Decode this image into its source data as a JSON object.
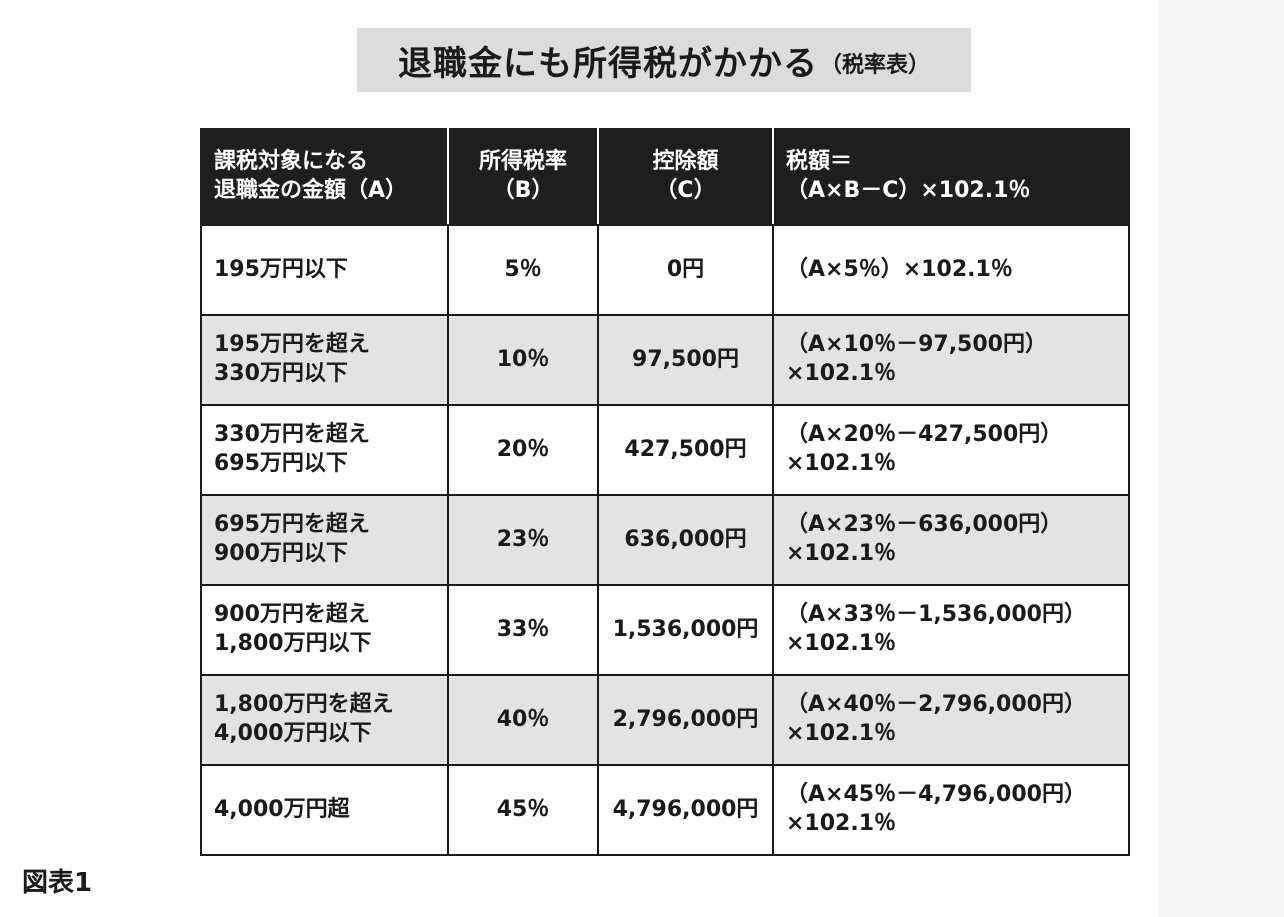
{
  "title": {
    "main": "退職金にも所得税がかかる",
    "sub": "（税率表）"
  },
  "table": {
    "headers": [
      {
        "line1": "課税対象になる",
        "line2": "退職金の金額（A）"
      },
      {
        "line1": "所得税率",
        "line2": "（B）"
      },
      {
        "line1": "控除額",
        "line2": "（C）"
      },
      {
        "line1": "税額＝",
        "line2": "（A×B－C）×102.1％"
      }
    ],
    "rows": [
      {
        "amount1": "195万円以下",
        "amount2": "",
        "rate": "5％",
        "deduction": "0円",
        "formula1": "（A×5％）×102.1％",
        "formula2": ""
      },
      {
        "amount1": "195万円を超え",
        "amount2": "330万円以下",
        "rate": "10％",
        "deduction": "97,500円",
        "formula1": "（A×10％－97,500円）",
        "formula2": "×102.1％"
      },
      {
        "amount1": "330万円を超え",
        "amount2": "695万円以下",
        "rate": "20％",
        "deduction": "427,500円",
        "formula1": "（A×20％－427,500円）",
        "formula2": "×102.1％"
      },
      {
        "amount1": "695万円を超え",
        "amount2": "900万円以下",
        "rate": "23％",
        "deduction": "636,000円",
        "formula1": "（A×23％－636,000円）",
        "formula2": "×102.1％"
      },
      {
        "amount1": "900万円を超え",
        "amount2": "1,800万円以下",
        "rate": "33％",
        "deduction": "1,536,000円",
        "formula1": "（A×33％－1,536,000円）",
        "formula2": "×102.1％"
      },
      {
        "amount1": "1,800万円を超え",
        "amount2": "4,000万円以下",
        "rate": "40％",
        "deduction": "2,796,000円",
        "formula1": "（A×40％－2,796,000円）",
        "formula2": "×102.1％"
      },
      {
        "amount1": "4,000万円超",
        "amount2": "",
        "rate": "45％",
        "deduction": "4,796,000円",
        "formula1": "（A×45％－4,796,000円）",
        "formula2": "×102.1％"
      }
    ]
  },
  "caption": "図表1"
}
